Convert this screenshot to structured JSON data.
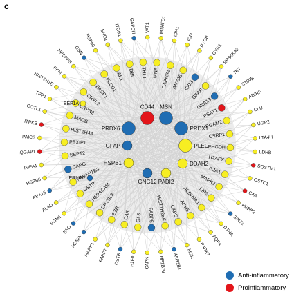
{
  "panel_label": "c",
  "colors": {
    "anti": "#1f6db3",
    "pro": "#e3151a",
    "yellow": "#f7ee22",
    "edge": "#cfcfcf",
    "disk": "#ececec"
  },
  "legend": [
    {
      "label": "Anti-inflammatory",
      "color": "#1f6db3"
    },
    {
      "label": "Proinflammatory",
      "color": "#e3151a"
    }
  ],
  "center_nodes": [
    {
      "label": "CD44",
      "category": "pro",
      "size": "large"
    },
    {
      "label": "MSN",
      "category": "anti",
      "size": "large"
    },
    {
      "label": "PRDX1",
      "category": "anti",
      "size": "large"
    },
    {
      "label": "PLEC",
      "category": "yellow",
      "size": "large"
    },
    {
      "label": "DDAH2",
      "category": "yellow",
      "size": "medium"
    },
    {
      "label": "PADI2",
      "category": "yellow",
      "size": "medium"
    },
    {
      "label": "GNG12",
      "category": "anti",
      "size": "medium"
    },
    {
      "label": "HSPB1",
      "category": "yellow",
      "size": "medium"
    },
    {
      "label": "GFAP",
      "category": "anti",
      "size": "medium"
    },
    {
      "label": "PRDX6",
      "category": "anti",
      "size": "large"
    }
  ],
  "middle_ring": [
    {
      "label": "THL1",
      "category": "yellow"
    },
    {
      "label": "MNA",
      "category": "yellow"
    },
    {
      "label": "CAPNS1",
      "category": "yellow"
    },
    {
      "label": "ANXA5",
      "category": "yellow"
    },
    {
      "label": "IDD3",
      "category": "anti"
    },
    {
      "label": "GFAP",
      "category": "yellow"
    },
    {
      "label": "GNA13",
      "category": "anti"
    },
    {
      "label": "PSAT1",
      "category": "pro"
    },
    {
      "label": "PGAM2",
      "category": "yellow"
    },
    {
      "label": "CSRP1",
      "category": "yellow"
    },
    {
      "label": "PHGDH",
      "category": "yellow"
    },
    {
      "label": "H2AFX",
      "category": "yellow"
    },
    {
      "label": "GJA1",
      "category": "yellow"
    },
    {
      "label": "MAPK3",
      "category": "yellow"
    },
    {
      "label": "LIP2",
      "category": "yellow"
    },
    {
      "label": "ALDH9A1",
      "category": "yellow"
    },
    {
      "label": "ADH5",
      "category": "yellow"
    },
    {
      "label": "CAPS",
      "category": "yellow"
    },
    {
      "label": "HIST1H2BK",
      "category": "yellow"
    },
    {
      "label": "FABP5",
      "category": "anti"
    },
    {
      "label": "GLS",
      "category": "yellow"
    },
    {
      "label": "CA8",
      "category": "yellow"
    },
    {
      "label": "EZR",
      "category": "yellow"
    },
    {
      "label": "DPYSL3",
      "category": "yellow"
    },
    {
      "label": "HEPACAM",
      "category": "yellow"
    },
    {
      "label": "GSTP",
      "category": "yellow"
    },
    {
      "label": "PAFAH1B3",
      "category": "yellow"
    },
    {
      "label": "CAPG",
      "category": "anti"
    },
    {
      "label": "SEPT2",
      "category": "yellow"
    },
    {
      "label": "PBXIP1",
      "category": "yellow"
    },
    {
      "label": "HIST1H4A",
      "category": "yellow"
    },
    {
      "label": "MAOB",
      "category": "yellow"
    },
    {
      "label": "CAPN2",
      "category": "yellow"
    },
    {
      "label": "CRYL1",
      "category": "yellow"
    },
    {
      "label": "BASP1",
      "category": "yellow"
    },
    {
      "label": "PLCD1",
      "category": "yellow"
    },
    {
      "label": "AK1",
      "category": "yellow"
    },
    {
      "label": "DBI",
      "category": "yellow"
    }
  ],
  "outer_ring": [
    {
      "label": "ITGB1",
      "category": "yellow"
    },
    {
      "label": "GAPDH",
      "category": "anti"
    },
    {
      "label": "VAT1",
      "category": "yellow"
    },
    {
      "label": "MTHFD1",
      "category": "yellow"
    },
    {
      "label": "IDH1",
      "category": "yellow"
    },
    {
      "label": "IGD",
      "category": "yellow"
    },
    {
      "label": "PYGB",
      "category": "yellow"
    },
    {
      "label": "GYG1",
      "category": "yellow"
    },
    {
      "label": "RPS6KA2",
      "category": "yellow"
    },
    {
      "label": "TKT",
      "category": "anti"
    },
    {
      "label": "S100B",
      "category": "yellow"
    },
    {
      "label": "ADIRF",
      "category": "yellow"
    },
    {
      "label": "CLU",
      "category": "yellow"
    },
    {
      "label": "UGP2",
      "category": "yellow"
    },
    {
      "label": "LTA4H",
      "category": "yellow"
    },
    {
      "label": "LDHB",
      "category": "yellow"
    },
    {
      "label": "SQSTM1",
      "category": "pro"
    },
    {
      "label": "OSTC1",
      "category": "yellow"
    },
    {
      "label": "C4A",
      "category": "pro"
    },
    {
      "label": "HEBP2",
      "category": "yellow"
    },
    {
      "label": "SIRT2",
      "category": "anti"
    },
    {
      "label": "DTNA",
      "category": "yellow"
    },
    {
      "label": "AQP4",
      "category": "yellow"
    },
    {
      "label": "PARK7",
      "category": "yellow"
    },
    {
      "label": "MGK",
      "category": "yellow"
    },
    {
      "label": "AKR1B1",
      "category": "anti"
    },
    {
      "label": "HP1BP3",
      "category": "yellow"
    },
    {
      "label": "CAPN",
      "category": "yellow"
    },
    {
      "label": "H1F0",
      "category": "yellow"
    },
    {
      "label": "CSTB",
      "category": "anti"
    },
    {
      "label": "FABP7",
      "category": "yellow"
    },
    {
      "label": "MAPK1",
      "category": "yellow"
    },
    {
      "label": "H2AFY",
      "category": "anti"
    },
    {
      "label": "ESD",
      "category": "anti"
    },
    {
      "label": "PGM1",
      "category": "yellow"
    },
    {
      "label": "ALAD",
      "category": "yellow"
    },
    {
      "label": "PEA15",
      "category": "anti"
    },
    {
      "label": "HSPB6",
      "category": "yellow"
    },
    {
      "label": "IMPA1",
      "category": "yellow"
    },
    {
      "label": "IQGAP1",
      "category": "pro"
    },
    {
      "label": "PAICS",
      "category": "yellow"
    },
    {
      "label": "ITPKB",
      "category": "pro"
    },
    {
      "label": "COTL1",
      "category": "yellow"
    },
    {
      "label": "TPP1",
      "category": "yellow"
    },
    {
      "label": "HIST1H1E",
      "category": "yellow"
    },
    {
      "label": "PKM",
      "category": "yellow"
    },
    {
      "label": "NPEPPS",
      "category": "yellow"
    },
    {
      "label": "GSN",
      "category": "anti"
    },
    {
      "label": "HSP90",
      "category": "yellow"
    },
    {
      "label": "ENO1",
      "category": "yellow"
    }
  ],
  "inner_labels_extra": [
    {
      "label": "EEF1A",
      "category": "yellow"
    },
    {
      "label": "ERLIN2",
      "category": "anti"
    }
  ]
}
